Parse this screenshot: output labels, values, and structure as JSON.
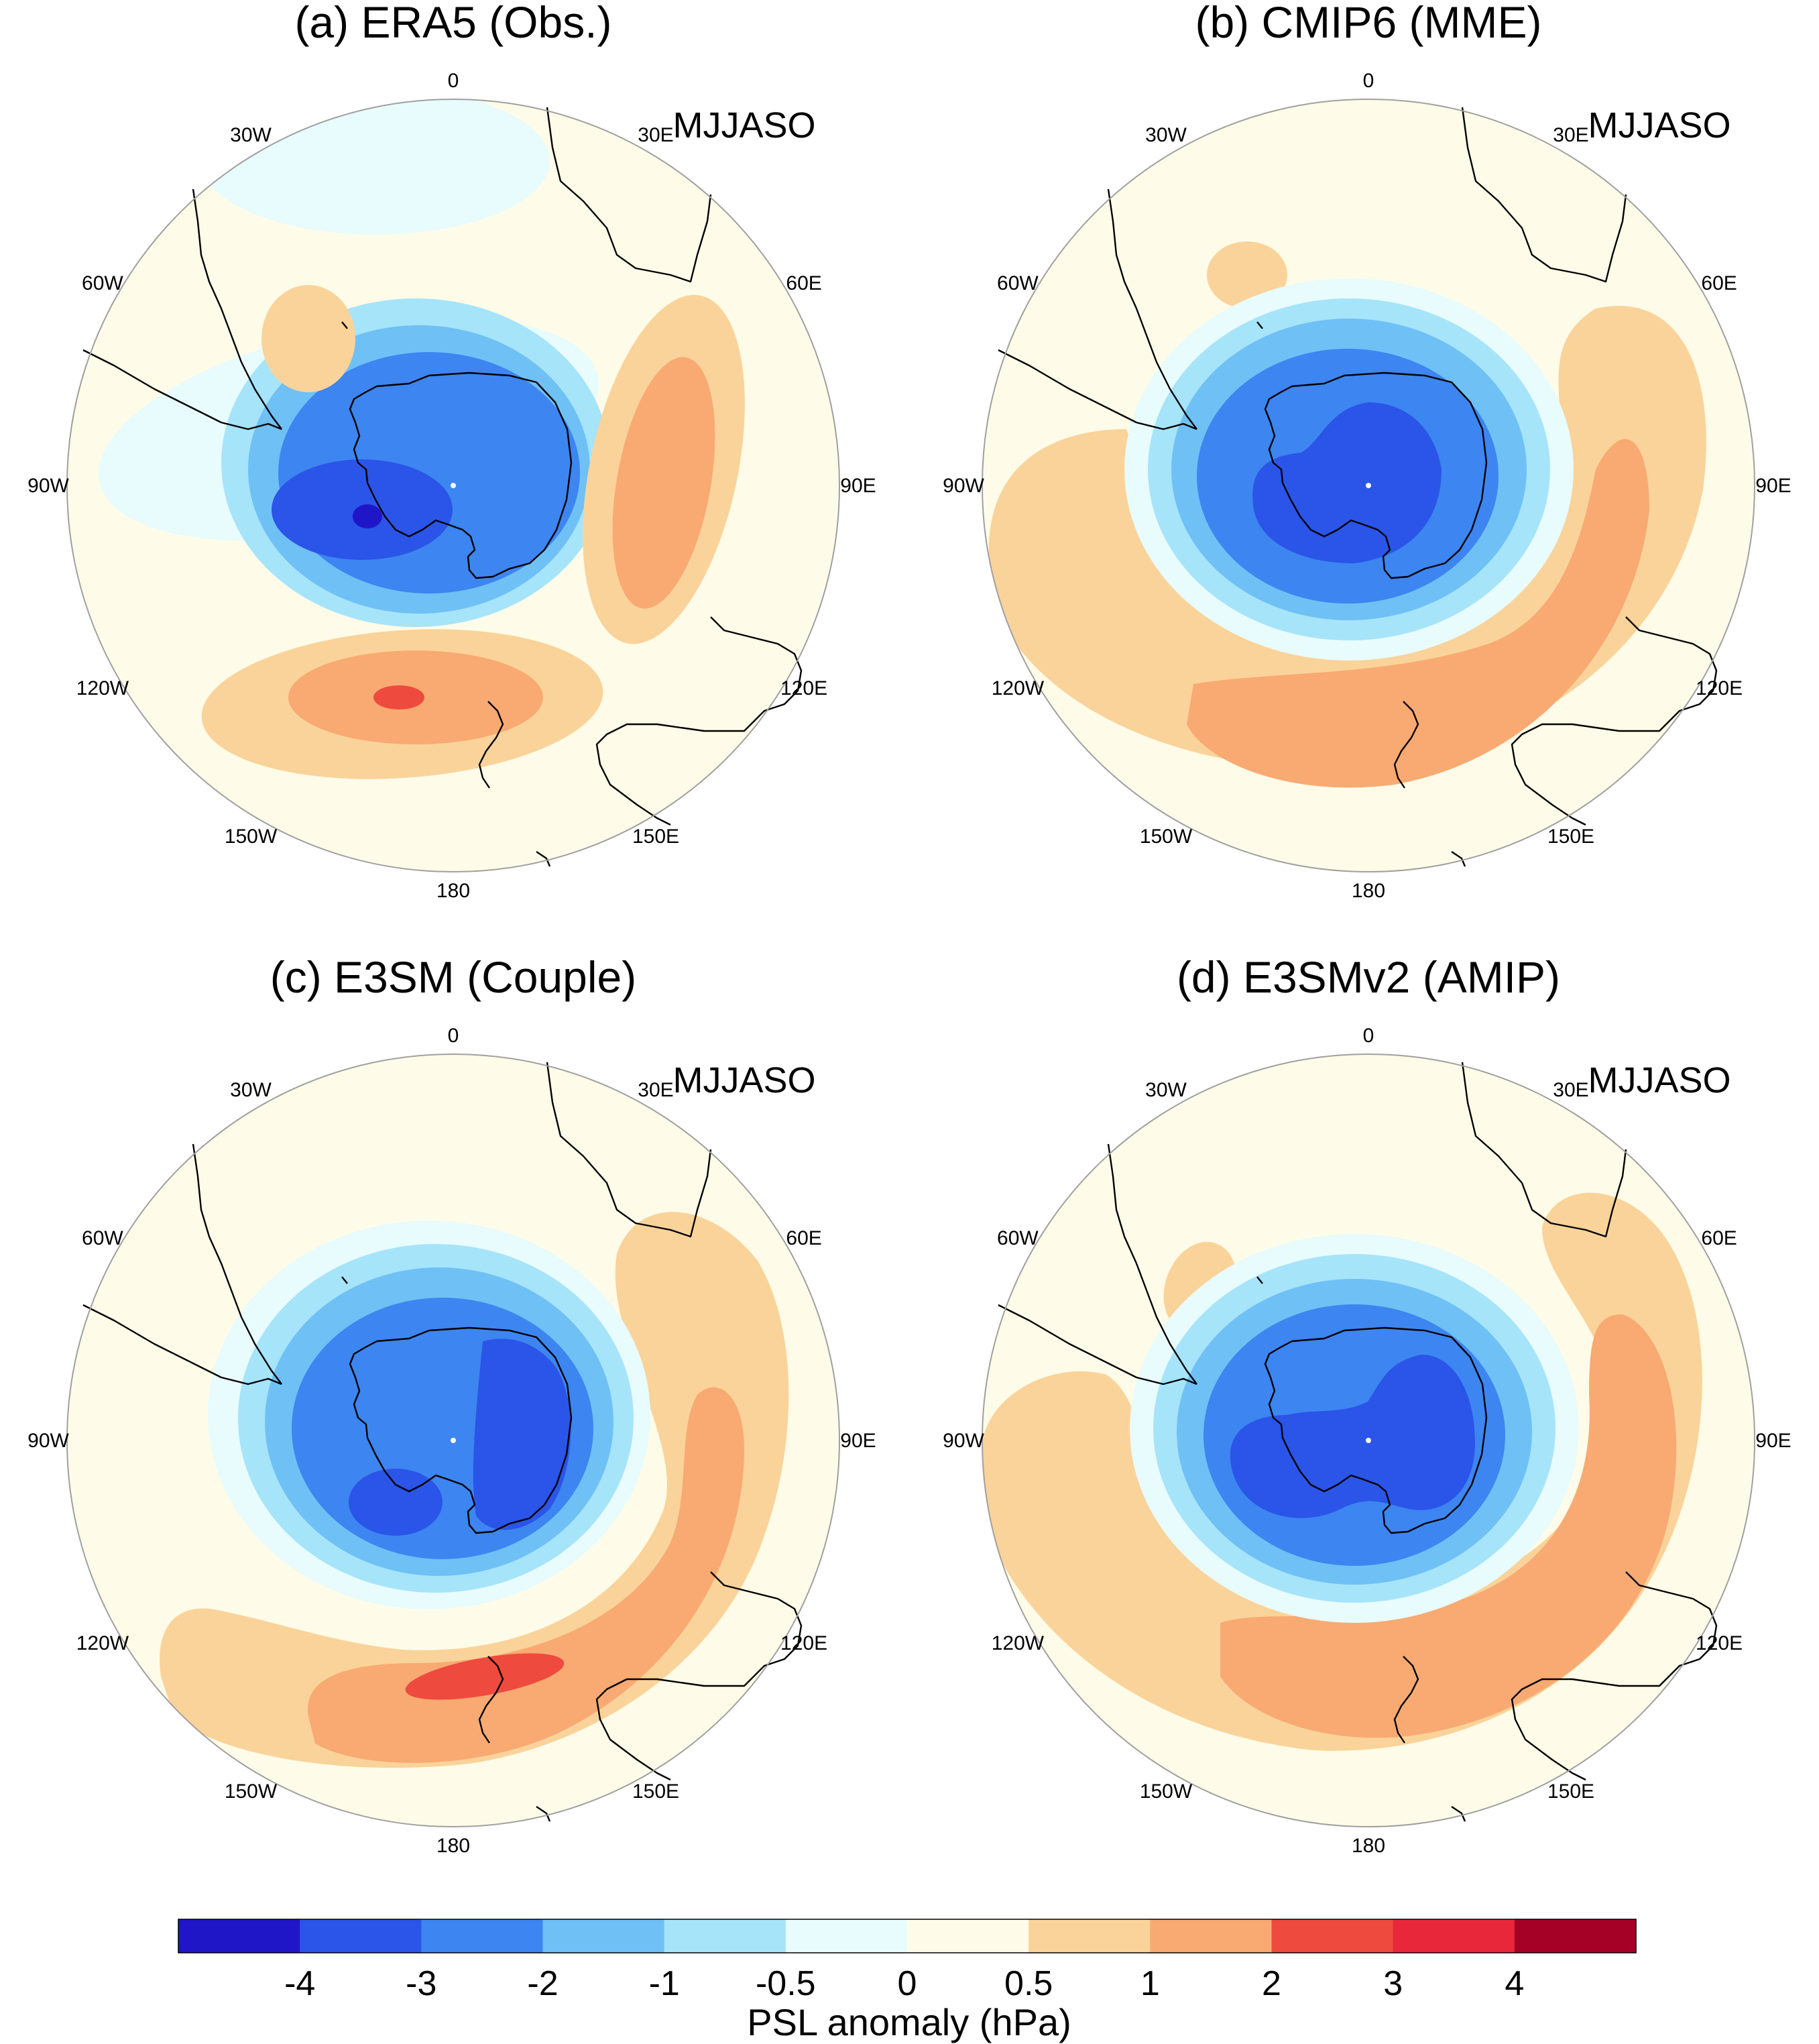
{
  "figure": {
    "panels": [
      {
        "title": "(a) ERA5 (Obs.)",
        "season": "MJJASO",
        "style": "a"
      },
      {
        "title": "(b) CMIP6 (MME)",
        "season": "MJJASO",
        "style": "b"
      },
      {
        "title": "(c) E3SM (Couple)",
        "season": "MJJASO",
        "style": "c"
      },
      {
        "title": "(d) E3SMv2 (AMIP)",
        "season": "MJJASO",
        "style": "d"
      }
    ],
    "longitude_labels": [
      {
        "deg": 0,
        "text": "0"
      },
      {
        "deg": 30,
        "text": "30E"
      },
      {
        "deg": 60,
        "text": "60E"
      },
      {
        "deg": 90,
        "text": "90E"
      },
      {
        "deg": 120,
        "text": "120E"
      },
      {
        "deg": 150,
        "text": "150E"
      },
      {
        "deg": 180,
        "text": "180"
      },
      {
        "deg": -150,
        "text": "150W"
      },
      {
        "deg": -120,
        "text": "120W"
      },
      {
        "deg": -90,
        "text": "90W"
      },
      {
        "deg": -60,
        "text": "60W"
      },
      {
        "deg": -30,
        "text": "30W"
      }
    ],
    "colorbar": {
      "title": "PSL anomaly (hPa)",
      "levels": [
        "-4",
        "-3",
        "-2",
        "-1",
        "-0.5",
        "0",
        "0.5",
        "1",
        "2",
        "3",
        "4"
      ],
      "colors": [
        "#1f16c7",
        "#2a55e8",
        "#3d85f0",
        "#6fc0f5",
        "#a6e4fa",
        "#e8fbfd",
        "#fefce8",
        "#fad39a",
        "#f8aa72",
        "#ef4a3e",
        "#e8283a",
        "#a50026"
      ]
    }
  }
}
